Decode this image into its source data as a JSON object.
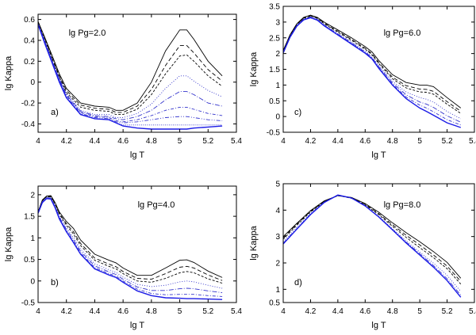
{
  "chart_data": [
    {
      "type": "line",
      "panel_label": "a)",
      "annotation": "lg Pg=2.0",
      "xlabel": "lg T",
      "ylabel": "lg Kappa",
      "xlim": [
        4,
        5.4
      ],
      "ylim": [
        -0.48,
        0.65
      ],
      "xticks": [
        "4",
        "4.2",
        "4.4",
        "4.6",
        "4.8",
        "5",
        "5.2",
        "5.4"
      ],
      "yticks": [
        "0.6",
        "0.4",
        "0.2",
        "0",
        "-0.2",
        "-0.4"
      ],
      "x": [
        4.0,
        4.05,
        4.1,
        4.15,
        4.2,
        4.3,
        4.4,
        4.5,
        4.55,
        4.6,
        4.7,
        4.8,
        4.9,
        5.0,
        5.05,
        5.1,
        5.2,
        5.3
      ],
      "series": [
        {
          "name": "black solid",
          "color": "#000000",
          "dash": "",
          "values": [
            0.58,
            0.42,
            0.25,
            0.08,
            -0.06,
            -0.2,
            -0.23,
            -0.24,
            -0.27,
            -0.27,
            -0.2,
            0.0,
            0.3,
            0.5,
            0.5,
            0.41,
            0.2,
            0.06
          ]
        },
        {
          "name": "black dashed",
          "color": "#000000",
          "dash": "5,3",
          "values": [
            0.58,
            0.41,
            0.23,
            0.06,
            -0.08,
            -0.22,
            -0.25,
            -0.26,
            -0.29,
            -0.29,
            -0.23,
            -0.07,
            0.16,
            0.35,
            0.35,
            0.28,
            0.12,
            0.01
          ]
        },
        {
          "name": "black short dashed",
          "color": "#000000",
          "dash": "3,2",
          "values": [
            0.57,
            0.4,
            0.22,
            0.05,
            -0.1,
            -0.24,
            -0.27,
            -0.28,
            -0.31,
            -0.31,
            -0.26,
            -0.12,
            0.08,
            0.25,
            0.26,
            0.2,
            0.06,
            -0.04
          ]
        },
        {
          "name": "blue dotted",
          "color": "#3333cc",
          "dash": "1,2",
          "values": [
            0.56,
            0.39,
            0.21,
            0.04,
            -0.11,
            -0.27,
            -0.31,
            -0.31,
            -0.34,
            -0.34,
            -0.3,
            -0.21,
            -0.06,
            0.06,
            0.06,
            0.01,
            -0.08,
            -0.14
          ]
        },
        {
          "name": "blue dash-dot",
          "color": "#3333cc",
          "dash": "6,2,1,2",
          "values": [
            0.56,
            0.38,
            0.2,
            0.03,
            -0.12,
            -0.28,
            -0.32,
            -0.33,
            -0.35,
            -0.36,
            -0.33,
            -0.27,
            -0.17,
            -0.09,
            -0.09,
            -0.12,
            -0.2,
            -0.23
          ]
        },
        {
          "name": "blue dash-dot 2",
          "color": "#3333cc",
          "dash": "4,2,1,2",
          "values": [
            0.56,
            0.38,
            0.2,
            0.02,
            -0.13,
            -0.29,
            -0.33,
            -0.34,
            -0.37,
            -0.38,
            -0.36,
            -0.32,
            -0.27,
            -0.24,
            -0.24,
            -0.26,
            -0.3,
            -0.32
          ]
        },
        {
          "name": "blue dash-dot-dot",
          "color": "#3333cc",
          "dash": "5,2,1,2,1,2",
          "values": [
            0.55,
            0.37,
            0.19,
            0.02,
            -0.14,
            -0.3,
            -0.34,
            -0.35,
            -0.38,
            -0.39,
            -0.38,
            -0.36,
            -0.34,
            -0.33,
            -0.33,
            -0.34,
            -0.36,
            -0.37
          ]
        },
        {
          "name": "blue dotted 2",
          "color": "#3333cc",
          "dash": "1,1.5",
          "values": [
            0.55,
            0.37,
            0.18,
            0.01,
            -0.15,
            -0.31,
            -0.35,
            -0.36,
            -0.39,
            -0.41,
            -0.41,
            -0.41,
            -0.41,
            -0.41,
            -0.41,
            -0.41,
            -0.41,
            -0.41
          ]
        },
        {
          "name": "blue solid",
          "color": "#1a1ae6",
          "dash": "",
          "values": [
            0.55,
            0.36,
            0.18,
            0.0,
            -0.15,
            -0.31,
            -0.35,
            -0.36,
            -0.39,
            -0.42,
            -0.44,
            -0.45,
            -0.45,
            -0.45,
            -0.45,
            -0.44,
            -0.43,
            -0.42
          ]
        }
      ]
    },
    {
      "type": "line",
      "panel_label": "c)",
      "annotation": "lg Pg=6.0",
      "xlabel": "lg T",
      "ylabel": "lg Kappa",
      "xlim": [
        4,
        5.4
      ],
      "ylim": [
        -0.5,
        3.5
      ],
      "xticks": [
        "4",
        "4.2",
        "4.4",
        "4.6",
        "4.8",
        "5",
        "5.2",
        "5.4"
      ],
      "yticks": [
        "3.5",
        "3",
        "2.5",
        "2",
        "1.5",
        "1",
        "0.5",
        "0",
        "-0.5"
      ],
      "x": [
        4.0,
        4.05,
        4.1,
        4.15,
        4.2,
        4.25,
        4.3,
        4.4,
        4.5,
        4.6,
        4.65,
        4.7,
        4.8,
        4.9,
        5.0,
        5.05,
        5.1,
        5.2,
        5.3
      ],
      "series": [
        {
          "name": "black solid",
          "color": "#000000",
          "dash": "",
          "values": [
            2.1,
            2.6,
            2.95,
            3.15,
            3.22,
            3.15,
            3.0,
            2.75,
            2.5,
            2.22,
            2.05,
            1.78,
            1.33,
            1.08,
            1.0,
            1.0,
            0.95,
            0.6,
            0.27
          ]
        },
        {
          "name": "black dashed",
          "color": "#000000",
          "dash": "5,3",
          "values": [
            2.08,
            2.58,
            2.93,
            3.13,
            3.2,
            3.13,
            2.97,
            2.71,
            2.45,
            2.17,
            1.99,
            1.72,
            1.25,
            0.98,
            0.87,
            0.86,
            0.8,
            0.47,
            0.17
          ]
        },
        {
          "name": "black short dashed",
          "color": "#000000",
          "dash": "3,2",
          "values": [
            2.07,
            2.57,
            2.92,
            3.12,
            3.19,
            3.12,
            2.95,
            2.68,
            2.42,
            2.14,
            1.96,
            1.68,
            1.2,
            0.91,
            0.78,
            0.77,
            0.71,
            0.39,
            0.1
          ]
        },
        {
          "name": "blue dotted",
          "color": "#3333cc",
          "dash": "1,2",
          "values": [
            2.05,
            2.55,
            2.9,
            3.1,
            3.17,
            3.1,
            2.92,
            2.64,
            2.37,
            2.08,
            1.9,
            1.62,
            1.12,
            0.78,
            0.6,
            0.55,
            0.46,
            0.16,
            -0.07
          ]
        },
        {
          "name": "blue dash-dot",
          "color": "#3333cc",
          "dash": "6,2,1,2",
          "values": [
            2.04,
            2.54,
            2.89,
            3.09,
            3.16,
            3.08,
            2.9,
            2.62,
            2.34,
            2.05,
            1.87,
            1.58,
            1.07,
            0.69,
            0.46,
            0.39,
            0.29,
            0.02,
            -0.18
          ]
        },
        {
          "name": "blue dash-dot 2",
          "color": "#3333cc",
          "dash": "4,2,1,2",
          "values": [
            2.03,
            2.53,
            2.88,
            3.08,
            3.15,
            3.07,
            2.89,
            2.6,
            2.32,
            2.03,
            1.85,
            1.55,
            1.03,
            0.62,
            0.36,
            0.27,
            0.15,
            -0.1,
            -0.27
          ]
        },
        {
          "name": "blue solid",
          "color": "#1a1ae6",
          "dash": "",
          "values": [
            2.02,
            2.52,
            2.87,
            3.07,
            3.14,
            3.06,
            2.88,
            2.59,
            2.3,
            2.01,
            1.83,
            1.53,
            1.0,
            0.57,
            0.27,
            0.16,
            0.04,
            -0.2,
            -0.35
          ]
        }
      ]
    },
    {
      "type": "line",
      "panel_label": "b)",
      "annotation": "lg Pg=4.0",
      "xlabel": "lg T",
      "ylabel": "lg Kappa",
      "xlim": [
        4,
        5.4
      ],
      "ylim": [
        -0.5,
        2.2
      ],
      "xticks": [
        "4",
        "4.2",
        "4.4",
        "4.6",
        "4.8",
        "5",
        "5.2",
        "5.4"
      ],
      "yticks": [
        "2",
        "1.5",
        "1",
        "0.5",
        "0",
        "-0.5"
      ],
      "x": [
        4.0,
        4.03,
        4.06,
        4.09,
        4.12,
        4.15,
        4.2,
        4.25,
        4.3,
        4.4,
        4.5,
        4.55,
        4.6,
        4.7,
        4.8,
        4.9,
        5.0,
        5.05,
        5.1,
        5.2,
        5.3
      ],
      "series": [
        {
          "name": "black solid",
          "color": "#000000",
          "dash": "",
          "values": [
            1.6,
            1.88,
            1.97,
            1.98,
            1.82,
            1.6,
            1.38,
            1.22,
            0.95,
            0.62,
            0.48,
            0.42,
            0.3,
            0.13,
            0.13,
            0.3,
            0.48,
            0.49,
            0.43,
            0.23,
            0.08
          ]
        },
        {
          "name": "black dashed",
          "color": "#000000",
          "dash": "5,3",
          "values": [
            1.6,
            1.87,
            1.96,
            1.96,
            1.8,
            1.57,
            1.33,
            1.14,
            0.87,
            0.53,
            0.39,
            0.33,
            0.22,
            0.06,
            0.04,
            0.17,
            0.32,
            0.34,
            0.3,
            0.14,
            0.01
          ]
        },
        {
          "name": "black short dashed",
          "color": "#000000",
          "dash": "3,2",
          "values": [
            1.59,
            1.86,
            1.95,
            1.95,
            1.78,
            1.55,
            1.29,
            1.09,
            0.82,
            0.48,
            0.34,
            0.28,
            0.17,
            0.0,
            -0.03,
            0.06,
            0.19,
            0.22,
            0.19,
            0.05,
            -0.05
          ]
        },
        {
          "name": "blue dotted",
          "color": "#3333cc",
          "dash": "1,2",
          "values": [
            1.58,
            1.85,
            1.94,
            1.93,
            1.75,
            1.51,
            1.23,
            1.01,
            0.74,
            0.4,
            0.26,
            0.2,
            0.09,
            -0.08,
            -0.13,
            -0.1,
            -0.02,
            0.0,
            -0.02,
            -0.1,
            -0.17
          ]
        },
        {
          "name": "blue dash-dot",
          "color": "#3333cc",
          "dash": "6,2,1,2",
          "values": [
            1.58,
            1.84,
            1.93,
            1.92,
            1.73,
            1.48,
            1.19,
            0.96,
            0.69,
            0.35,
            0.21,
            0.15,
            0.04,
            -0.14,
            -0.22,
            -0.22,
            -0.18,
            -0.17,
            -0.18,
            -0.23,
            -0.27
          ]
        },
        {
          "name": "blue dash-dot 2",
          "color": "#3333cc",
          "dash": "4,2,1,2",
          "values": [
            1.57,
            1.83,
            1.92,
            1.91,
            1.71,
            1.46,
            1.16,
            0.92,
            0.65,
            0.31,
            0.17,
            0.11,
            0.0,
            -0.19,
            -0.29,
            -0.32,
            -0.31,
            -0.31,
            -0.31,
            -0.34,
            -0.36
          ]
        },
        {
          "name": "blue solid",
          "color": "#1a1ae6",
          "dash": "",
          "values": [
            1.57,
            1.82,
            1.91,
            1.9,
            1.7,
            1.44,
            1.14,
            0.89,
            0.62,
            0.28,
            0.14,
            0.08,
            -0.03,
            -0.23,
            -0.34,
            -0.39,
            -0.4,
            -0.41,
            -0.41,
            -0.42,
            -0.43
          ]
        }
      ]
    },
    {
      "type": "line",
      "panel_label": "d)",
      "annotation": "lg Pg=8.0",
      "xlabel": "lg T",
      "ylabel": "lg Kappa",
      "xlim": [
        4,
        5.4
      ],
      "ylim": [
        0.5,
        5.0
      ],
      "xticks": [
        "4",
        "4.2",
        "4.4",
        "4.6",
        "4.8",
        "5",
        "5.2",
        "5.4"
      ],
      "yticks": [
        "5",
        "4",
        "3",
        "2",
        "1",
        "0.5"
      ],
      "x": [
        4.0,
        4.1,
        4.2,
        4.3,
        4.4,
        4.5,
        4.6,
        4.7,
        4.8,
        4.9,
        5.0,
        5.1,
        5.2,
        5.3
      ],
      "series": [
        {
          "name": "black solid",
          "color": "#000000",
          "dash": "",
          "values": [
            3.0,
            3.5,
            3.98,
            4.35,
            4.55,
            4.48,
            4.25,
            3.92,
            3.52,
            3.15,
            2.8,
            2.43,
            2.02,
            1.42
          ]
        },
        {
          "name": "black dashed",
          "color": "#000000",
          "dash": "5,3",
          "values": [
            2.95,
            3.47,
            3.96,
            4.33,
            4.55,
            4.46,
            4.22,
            3.87,
            3.45,
            3.05,
            2.68,
            2.3,
            1.88,
            1.3
          ]
        },
        {
          "name": "black short dashed",
          "color": "#000000",
          "dash": "3,2",
          "values": [
            2.9,
            3.43,
            3.93,
            4.32,
            4.55,
            4.45,
            4.2,
            3.83,
            3.39,
            2.97,
            2.58,
            2.2,
            1.78,
            1.2
          ]
        },
        {
          "name": "blue dotted",
          "color": "#3333cc",
          "dash": "1,2",
          "values": [
            2.8,
            3.35,
            3.88,
            4.3,
            4.56,
            4.45,
            4.17,
            3.77,
            3.3,
            2.84,
            2.41,
            1.99,
            1.53,
            0.92
          ]
        },
        {
          "name": "blue dash-dot",
          "color": "#3333cc",
          "dash": "6,2,1,2",
          "values": [
            2.75,
            3.3,
            3.85,
            4.3,
            4.57,
            4.46,
            4.16,
            3.75,
            3.27,
            2.79,
            2.35,
            1.9,
            1.4,
            0.78
          ]
        },
        {
          "name": "blue solid",
          "color": "#1a1ae6",
          "dash": "",
          "values": [
            2.72,
            3.28,
            3.83,
            4.29,
            4.57,
            4.46,
            4.16,
            3.74,
            3.25,
            2.76,
            2.3,
            1.84,
            1.33,
            0.7
          ]
        }
      ]
    }
  ]
}
